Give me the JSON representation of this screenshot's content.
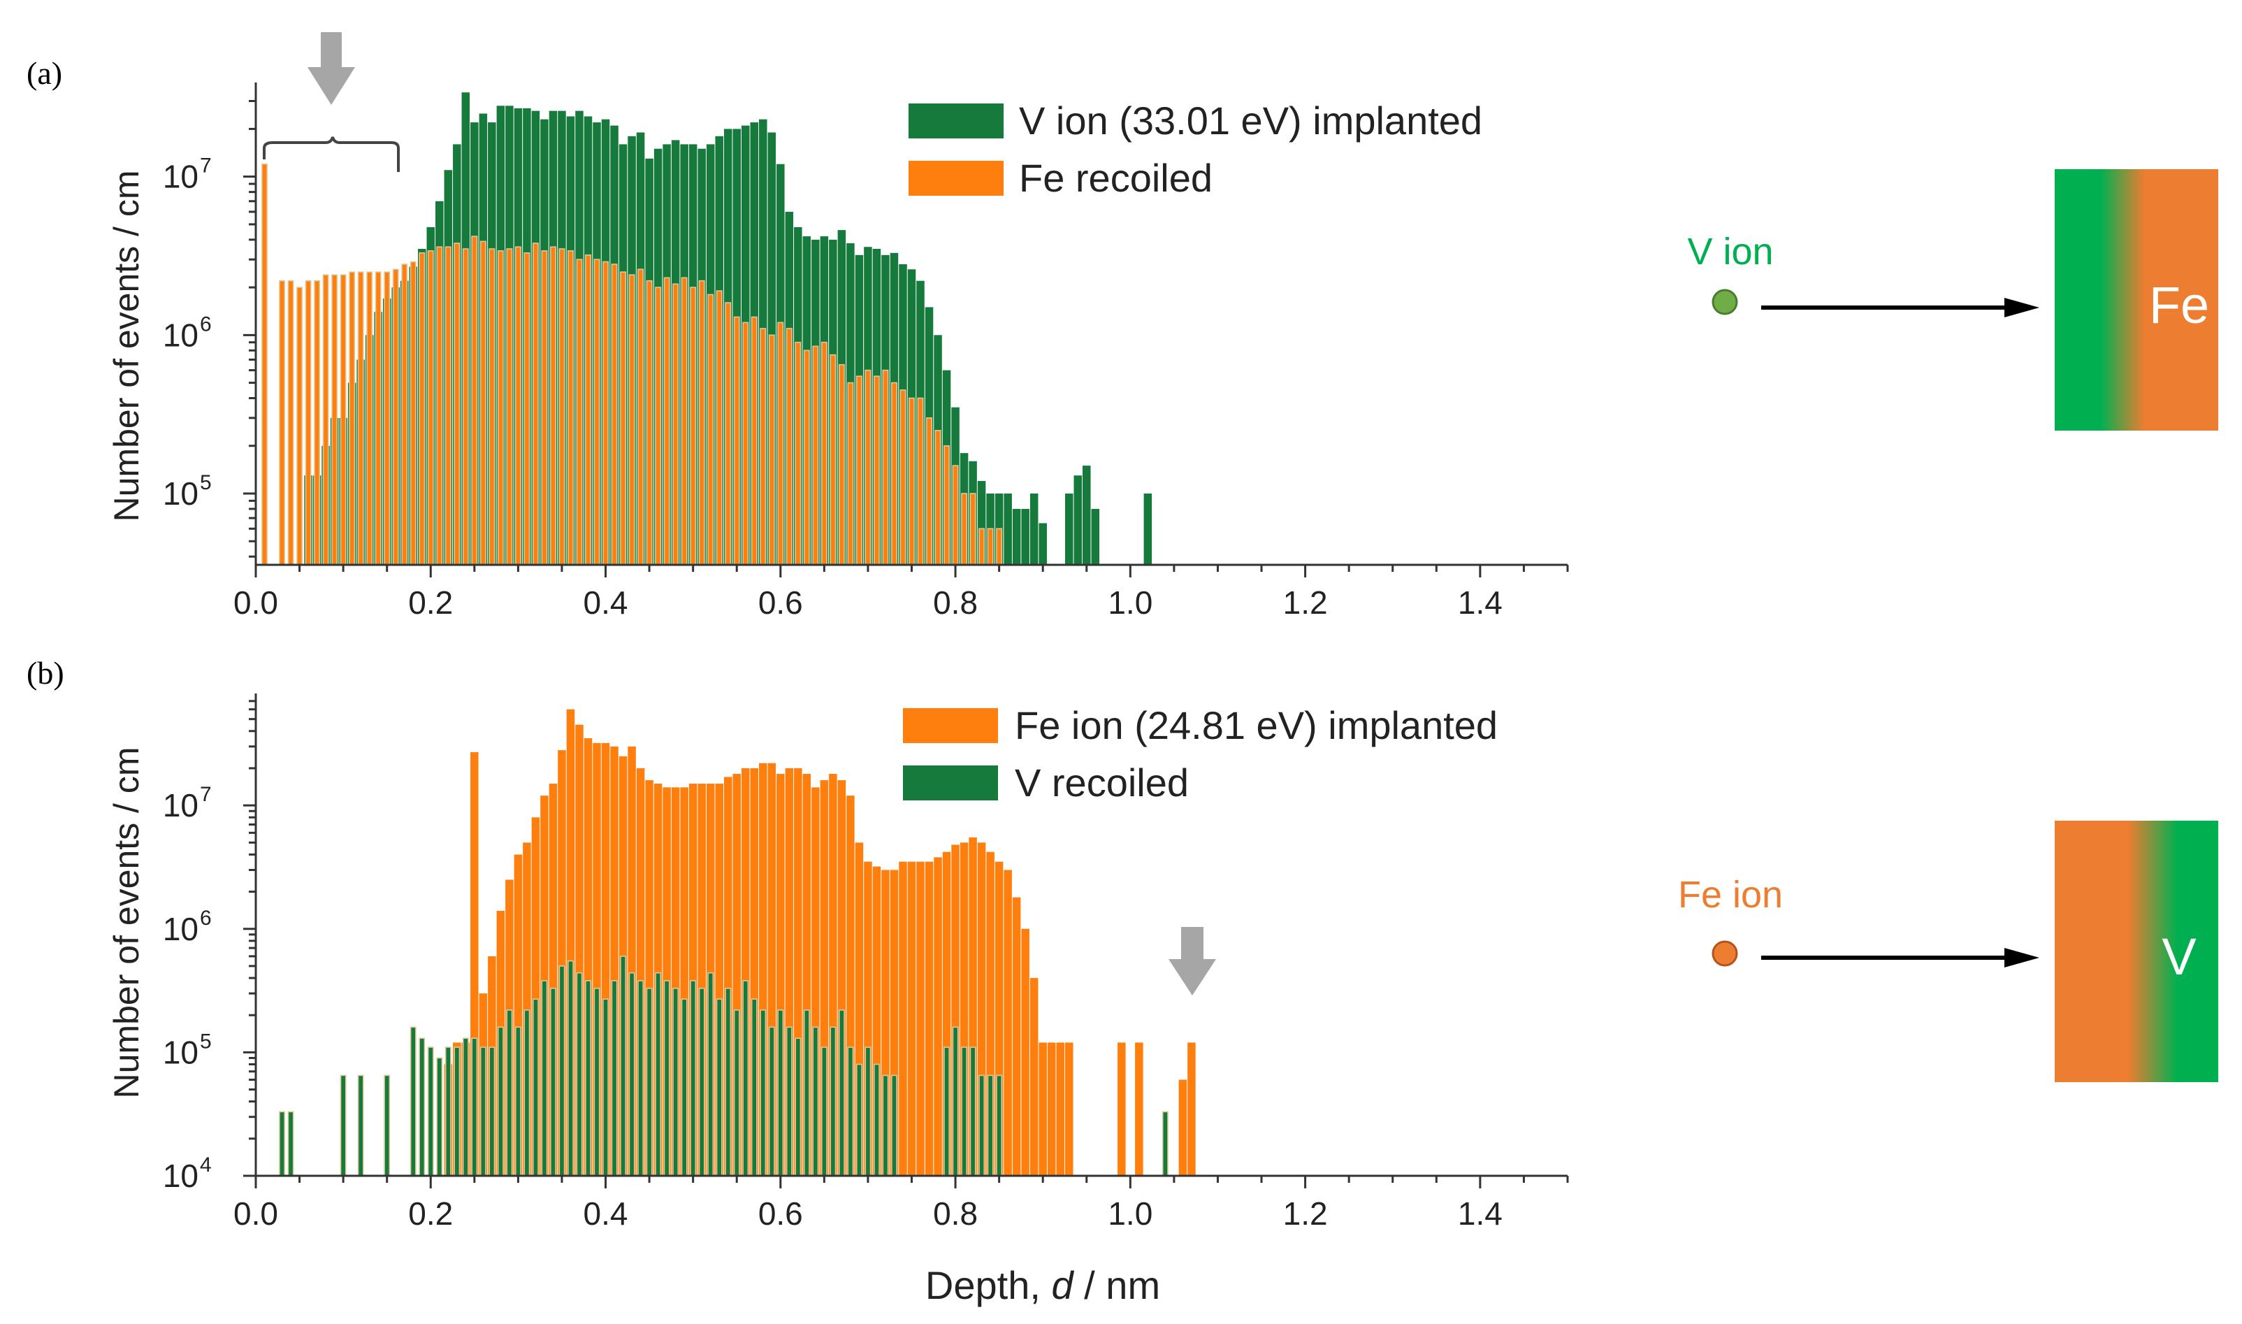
{
  "chart_data": [
    {
      "type": "bar",
      "panel_label": "(a)",
      "yscale": "log",
      "ylabel": "Number of events / cm",
      "xlabel": "",
      "xlim": [
        0.0,
        1.5
      ],
      "ylim_log10": [
        4.55,
        7.55
      ],
      "x_ticks": [
        "0.0",
        "0.2",
        "0.4",
        "0.6",
        "0.8",
        "1.0",
        "1.2",
        "1.4"
      ],
      "x_tick_values": [
        0.0,
        0.2,
        0.4,
        0.6,
        0.8,
        1.0,
        1.2,
        1.4
      ],
      "y_ticks": [
        {
          "base": "10",
          "exp": "5",
          "value": 5
        },
        {
          "base": "10",
          "exp": "6",
          "value": 6
        },
        {
          "base": "10",
          "exp": "7",
          "value": 7
        }
      ],
      "bin_width": 0.01,
      "series": [
        {
          "name": "V ion (33.01 eV) implanted",
          "color": "#157a3b",
          "x": [
            0.06,
            0.07,
            0.08,
            0.09,
            0.1,
            0.11,
            0.12,
            0.13,
            0.14,
            0.15,
            0.16,
            0.17,
            0.18,
            0.19,
            0.2,
            0.21,
            0.22,
            0.23,
            0.24,
            0.25,
            0.26,
            0.27,
            0.28,
            0.29,
            0.3,
            0.31,
            0.32,
            0.33,
            0.34,
            0.35,
            0.36,
            0.37,
            0.38,
            0.39,
            0.4,
            0.41,
            0.42,
            0.43,
            0.44,
            0.45,
            0.46,
            0.47,
            0.48,
            0.49,
            0.5,
            0.51,
            0.52,
            0.53,
            0.54,
            0.55,
            0.56,
            0.57,
            0.58,
            0.59,
            0.6,
            0.61,
            0.62,
            0.63,
            0.64,
            0.65,
            0.66,
            0.67,
            0.68,
            0.69,
            0.7,
            0.71,
            0.72,
            0.73,
            0.74,
            0.75,
            0.76,
            0.77,
            0.78,
            0.79,
            0.8,
            0.81,
            0.82,
            0.83,
            0.84,
            0.85,
            0.86,
            0.87,
            0.88,
            0.89,
            0.9,
            0.93,
            0.94,
            0.95,
            0.96,
            1.02
          ],
          "values": [
            130000.0,
            130000.0,
            200000.0,
            300000.0,
            300000.0,
            500000.0,
            700000.0,
            1000000.0,
            1400000.0,
            1700000.0,
            2000000.0,
            2200000.0,
            2700000.0,
            3500000.0,
            4800000.0,
            7000000.0,
            11000000.0,
            16000000.0,
            34000000.0,
            22000000.0,
            25000000.0,
            22000000.0,
            28000000.0,
            28000000.0,
            27000000.0,
            27000000.0,
            26000000.0,
            23000000.0,
            26000000.0,
            26000000.0,
            24000000.0,
            26000000.0,
            24000000.0,
            22000000.0,
            23000000.0,
            21000000.0,
            16000000.0,
            18000000.0,
            19000000.0,
            13000000.0,
            15000000.0,
            16000000.0,
            17000000.0,
            16000000.0,
            16000000.0,
            15000000.0,
            16000000.0,
            18000000.0,
            20000000.0,
            20000000.0,
            21000000.0,
            22000000.0,
            23000000.0,
            19000000.0,
            12000000.0,
            6000000.0,
            4800000.0,
            4200000.0,
            4000000.0,
            4200000.0,
            4000000.0,
            4600000.0,
            3800000.0,
            3200000.0,
            3600000.0,
            3500000.0,
            3200000.0,
            3300000.0,
            2800000.0,
            2600000.0,
            2200000.0,
            1500000.0,
            1000000.0,
            600000.0,
            350000.0,
            180000.0,
            160000.0,
            120000.0,
            100000.0,
            100000.0,
            100000.0,
            80000.0,
            80000.0,
            100000.0,
            65000.0,
            100000.0,
            130000.0,
            150000.0,
            80000.0,
            100000.0
          ]
        },
        {
          "name": "Fe recoiled",
          "color": "#ff7f0e",
          "x": [
            0.01,
            0.03,
            0.04,
            0.05,
            0.06,
            0.07,
            0.08,
            0.09,
            0.1,
            0.11,
            0.12,
            0.13,
            0.14,
            0.15,
            0.16,
            0.17,
            0.18,
            0.19,
            0.2,
            0.21,
            0.22,
            0.23,
            0.24,
            0.25,
            0.26,
            0.27,
            0.28,
            0.29,
            0.3,
            0.31,
            0.32,
            0.33,
            0.34,
            0.35,
            0.36,
            0.37,
            0.38,
            0.39,
            0.4,
            0.41,
            0.42,
            0.43,
            0.44,
            0.45,
            0.46,
            0.47,
            0.48,
            0.49,
            0.5,
            0.51,
            0.52,
            0.53,
            0.54,
            0.55,
            0.56,
            0.57,
            0.58,
            0.59,
            0.6,
            0.61,
            0.62,
            0.63,
            0.64,
            0.65,
            0.66,
            0.67,
            0.68,
            0.69,
            0.7,
            0.71,
            0.72,
            0.73,
            0.74,
            0.75,
            0.76,
            0.77,
            0.78,
            0.79,
            0.8,
            0.81,
            0.82,
            0.83,
            0.84,
            0.85
          ],
          "values": [
            12000000.0,
            2200000.0,
            2200000.0,
            2000000.0,
            2200000.0,
            2200000.0,
            2400000.0,
            2400000.0,
            2400000.0,
            2500000.0,
            2500000.0,
            2500000.0,
            2500000.0,
            2500000.0,
            2600000.0,
            2800000.0,
            2900000.0,
            3300000.0,
            3400000.0,
            3600000.0,
            3600000.0,
            3800000.0,
            3500000.0,
            4200000.0,
            3900000.0,
            3500000.0,
            3400000.0,
            3500000.0,
            3600000.0,
            3300000.0,
            3800000.0,
            3400000.0,
            3600000.0,
            3500000.0,
            3400000.0,
            3000000.0,
            3200000.0,
            3000000.0,
            2900000.0,
            2800000.0,
            2500000.0,
            2400000.0,
            2600000.0,
            2200000.0,
            2000000.0,
            2300000.0,
            2100000.0,
            2300000.0,
            2000000.0,
            2200000.0,
            1800000.0,
            1900000.0,
            1600000.0,
            1300000.0,
            1200000.0,
            1300000.0,
            1100000.0,
            1000000.0,
            1200000.0,
            1100000.0,
            900000.0,
            800000.0,
            850000.0,
            900000.0,
            750000.0,
            650000.0,
            500000.0,
            550000.0,
            600000.0,
            550000.0,
            600000.0,
            500000.0,
            450000.0,
            400000.0,
            400000.0,
            300000.0,
            250000.0,
            200000.0,
            150000.0,
            100000.0,
            100000.0,
            60000.0,
            60000.0,
            60000.0
          ]
        }
      ]
    },
    {
      "type": "bar",
      "panel_label": "(b)",
      "yscale": "log",
      "ylabel": "Number of events / cm",
      "xlabel_prefix": "Depth, ",
      "xlabel_var": "d",
      "xlabel_suffix": " / nm",
      "xlim": [
        0.0,
        1.5
      ],
      "ylim_log10": [
        4.0,
        7.85
      ],
      "x_ticks": [
        "0.0",
        "0.2",
        "0.4",
        "0.6",
        "0.8",
        "1.0",
        "1.2",
        "1.4"
      ],
      "x_tick_values": [
        0.0,
        0.2,
        0.4,
        0.6,
        0.8,
        1.0,
        1.2,
        1.4
      ],
      "y_ticks": [
        {
          "base": "10",
          "exp": "4",
          "value": 4
        },
        {
          "base": "10",
          "exp": "5",
          "value": 5
        },
        {
          "base": "10",
          "exp": "6",
          "value": 6
        },
        {
          "base": "10",
          "exp": "7",
          "value": 7
        }
      ],
      "bin_width": 0.01,
      "series": [
        {
          "name": "Fe ion (24.81 eV) implanted",
          "color": "#ff7f0e",
          "x": [
            0.22,
            0.23,
            0.24,
            0.25,
            0.26,
            0.27,
            0.28,
            0.29,
            0.3,
            0.31,
            0.32,
            0.33,
            0.34,
            0.35,
            0.36,
            0.37,
            0.38,
            0.39,
            0.4,
            0.41,
            0.42,
            0.43,
            0.44,
            0.45,
            0.46,
            0.47,
            0.48,
            0.49,
            0.5,
            0.51,
            0.52,
            0.53,
            0.54,
            0.55,
            0.56,
            0.57,
            0.58,
            0.59,
            0.6,
            0.61,
            0.62,
            0.63,
            0.64,
            0.65,
            0.66,
            0.67,
            0.68,
            0.69,
            0.7,
            0.71,
            0.72,
            0.73,
            0.74,
            0.75,
            0.76,
            0.77,
            0.78,
            0.79,
            0.8,
            0.81,
            0.82,
            0.83,
            0.84,
            0.85,
            0.86,
            0.87,
            0.88,
            0.89,
            0.9,
            0.91,
            0.92,
            0.93,
            0.99,
            1.01,
            1.06,
            1.07
          ],
          "values": [
            80000.0,
            120000.0,
            120000.0,
            27000000.0,
            300000.0,
            600000.0,
            1400000.0,
            2500000.0,
            4000000.0,
            5000000.0,
            8000000.0,
            12000000.0,
            15000000.0,
            28000000.0,
            60000000.0,
            45000000.0,
            35000000.0,
            32000000.0,
            32000000.0,
            30000000.0,
            25000000.0,
            30000000.0,
            20000000.0,
            16000000.0,
            15000000.0,
            14000000.0,
            14000000.0,
            14000000.0,
            15000000.0,
            15000000.0,
            15000000.0,
            15000000.0,
            17000000.0,
            18000000.0,
            20000000.0,
            20000000.0,
            22000000.0,
            22000000.0,
            18000000.0,
            20000000.0,
            20000000.0,
            18000000.0,
            14000000.0,
            16000000.0,
            18000000.0,
            16000000.0,
            12000000.0,
            5000000.0,
            3500000.0,
            3200000.0,
            3000000.0,
            3000000.0,
            3500000.0,
            3500000.0,
            3500000.0,
            3500000.0,
            3800000.0,
            4200000.0,
            4800000.0,
            5000000.0,
            5500000.0,
            5000000.0,
            4200000.0,
            3500000.0,
            3000000.0,
            1800000.0,
            1000000.0,
            400000.0,
            120000.0,
            120000.0,
            120000.0,
            120000.0,
            120000.0,
            120000.0,
            60000.0,
            120000.0
          ]
        },
        {
          "name": "V recoiled",
          "color": "#157a3b",
          "x": [
            0.03,
            0.04,
            0.1,
            0.12,
            0.15,
            0.18,
            0.19,
            0.2,
            0.21,
            0.22,
            0.23,
            0.24,
            0.25,
            0.26,
            0.27,
            0.28,
            0.29,
            0.3,
            0.31,
            0.32,
            0.33,
            0.34,
            0.35,
            0.36,
            0.37,
            0.38,
            0.39,
            0.4,
            0.41,
            0.42,
            0.43,
            0.44,
            0.45,
            0.46,
            0.47,
            0.48,
            0.49,
            0.5,
            0.51,
            0.52,
            0.53,
            0.54,
            0.55,
            0.56,
            0.57,
            0.58,
            0.59,
            0.6,
            0.61,
            0.62,
            0.63,
            0.64,
            0.65,
            0.66,
            0.67,
            0.68,
            0.69,
            0.7,
            0.71,
            0.72,
            0.73,
            0.79,
            0.8,
            0.81,
            0.82,
            0.83,
            0.84,
            0.85,
            1.04
          ],
          "values": [
            33000.0,
            33000.0,
            65000.0,
            65000.0,
            65000.0,
            160000.0,
            130000.0,
            110000.0,
            90000.0,
            110000.0,
            110000.0,
            130000.0,
            130000.0,
            110000.0,
            110000.0,
            160000.0,
            220000.0,
            160000.0,
            220000.0,
            270000.0,
            380000.0,
            330000.0,
            500000.0,
            550000.0,
            440000.0,
            380000.0,
            330000.0,
            270000.0,
            380000.0,
            600000.0,
            440000.0,
            380000.0,
            330000.0,
            440000.0,
            380000.0,
            330000.0,
            270000.0,
            380000.0,
            330000.0,
            440000.0,
            270000.0,
            330000.0,
            220000.0,
            380000.0,
            270000.0,
            220000.0,
            160000.0,
            220000.0,
            160000.0,
            130000.0,
            220000.0,
            160000.0,
            110000.0,
            160000.0,
            220000.0,
            110000.0,
            80000.0,
            110000.0,
            80000.0,
            65000.0,
            65000.0,
            110000.0,
            160000.0,
            110000.0,
            110000.0,
            65000.0,
            65000.0,
            65000.0,
            33000.0
          ]
        }
      ]
    }
  ],
  "schematic_a": {
    "ion_label": "V ion",
    "ion_color": "#00b050",
    "target_label": "Fe",
    "target_colors": [
      "#00b050",
      "#ed7d31"
    ]
  },
  "schematic_b": {
    "ion_label": "Fe ion",
    "ion_color": "#ed7d31",
    "target_label": "V",
    "target_colors": [
      "#ed7d31",
      "#00b050"
    ]
  }
}
